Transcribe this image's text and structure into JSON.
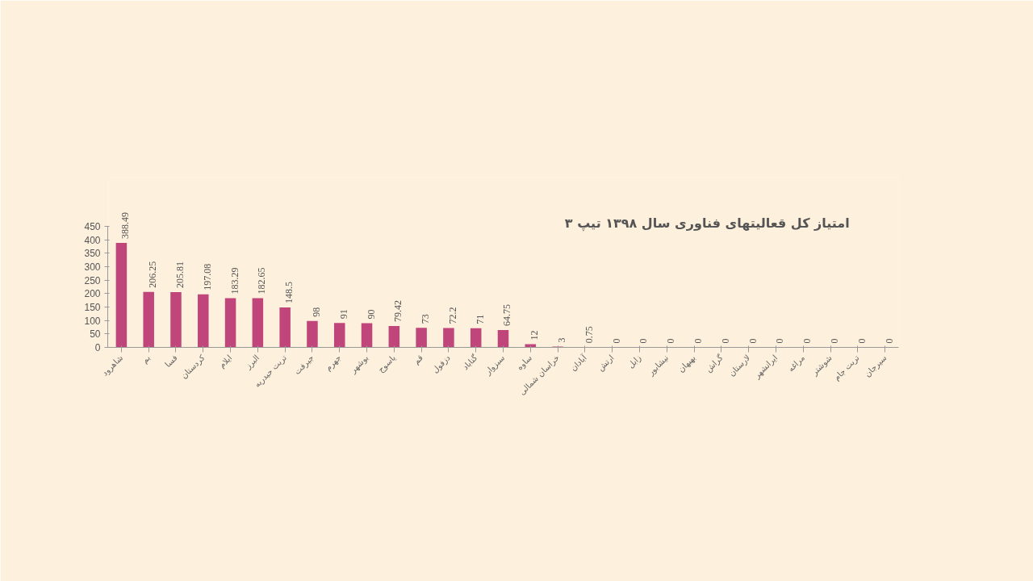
{
  "chart_data": {
    "type": "bar",
    "title": "امتیاز کل قعالیتهای فناوری سال ۱۳۹۸ تیپ ۳",
    "categories": [
      "شاهرود",
      "بم",
      "فسا",
      "کردستان",
      "ایلام",
      "البرز",
      "تربت حیدریه",
      "جیرفت",
      "جهرم",
      "بوشهر",
      "یاسوج",
      "قم",
      "دزفول",
      "گناباد",
      "سبزوار",
      "ساوه",
      "خراسان شمالی",
      "آبادان",
      "ارتش",
      "زابل",
      "نیشابور",
      "بهبهان",
      "گراش",
      "لارستان",
      "ایرانشهر",
      "مراغه",
      "شوشتر",
      "تربت جام",
      "سیرجان"
    ],
    "values": [
      388.49,
      206.25,
      205.81,
      197.08,
      183.29,
      182.65,
      148.5,
      98,
      91,
      90,
      79.42,
      73,
      72.2,
      71,
      64.75,
      12,
      3,
      0.75,
      0,
      0,
      0,
      0,
      0,
      0,
      0,
      0,
      0,
      0,
      0
    ],
    "color": "#c0457a",
    "ylim": [
      0,
      450
    ],
    "yticks": [
      0,
      50,
      100,
      150,
      200,
      250,
      300,
      350,
      400,
      450
    ],
    "grid": false,
    "data_labels": true
  }
}
